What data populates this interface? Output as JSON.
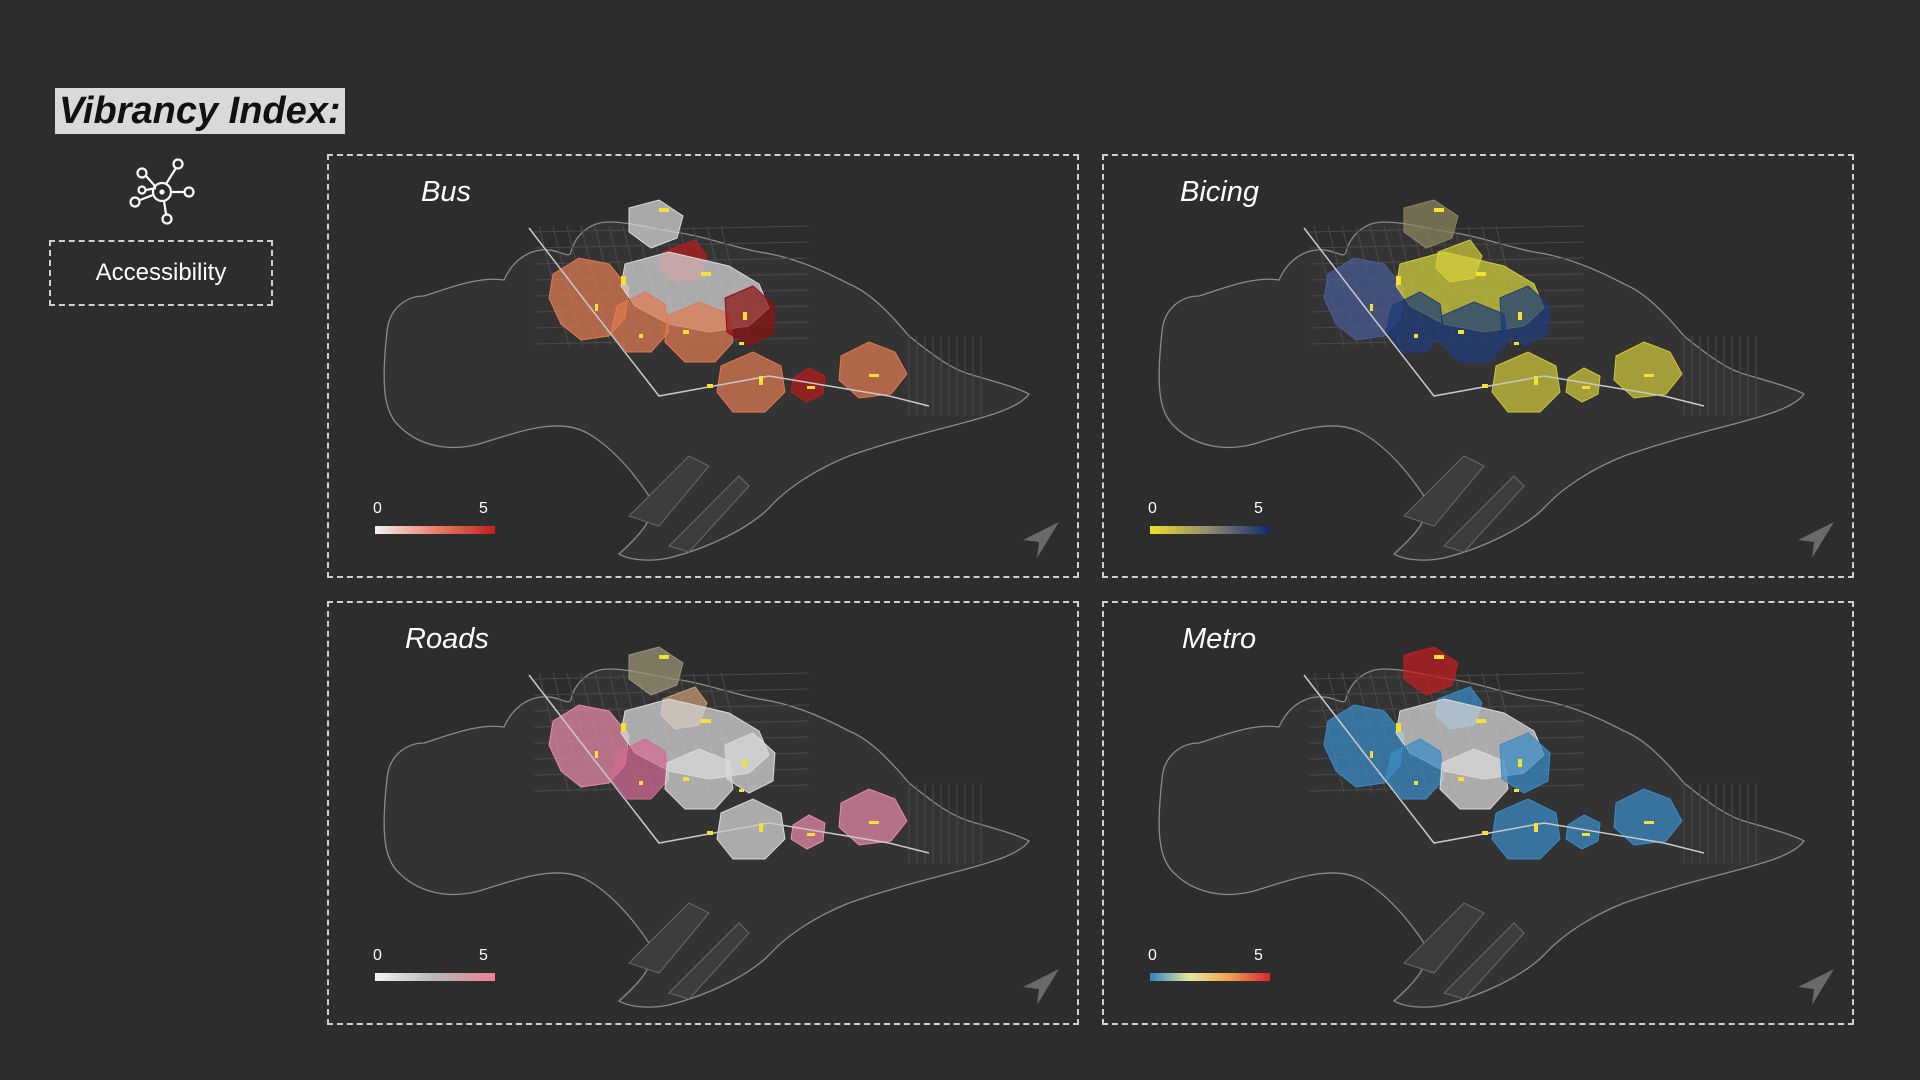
{
  "title": "Vibrancy Index:",
  "category": {
    "icon": "network-icon",
    "label": "Accessibility"
  },
  "panels": [
    {
      "label": "Bus",
      "legend": {
        "min": "0",
        "max": "5",
        "colors": [
          "#f2f2f2",
          "#e8826b",
          "#c21f1f"
        ]
      },
      "zones": [
        {
          "color": "#e07a52",
          "value": 3
        },
        {
          "color": "#b51c1c",
          "value": 5
        },
        {
          "color": "#d9d9d9",
          "value": 0
        },
        {
          "color": "#e07a52",
          "value": 3
        },
        {
          "color": "#e07a52",
          "value": 3
        },
        {
          "color": "#8a1212",
          "value": 5
        },
        {
          "color": "#e07a52",
          "value": 3
        },
        {
          "color": "#b51c1c",
          "value": 5
        },
        {
          "color": "#e07a52",
          "value": 3
        },
        {
          "color": "#d9d9d9",
          "value": 0
        }
      ]
    },
    {
      "label": "Bicing",
      "legend": {
        "min": "0",
        "max": "5",
        "colors": [
          "#f2dc2a",
          "#8c8a70",
          "#0e2a6b"
        ]
      },
      "zones": [
        {
          "color": "#4a5c94",
          "value": 4
        },
        {
          "color": "#cfc83a",
          "value": 1
        },
        {
          "color": "#d4d23c",
          "value": 1
        },
        {
          "color": "#1f3b78",
          "value": 5
        },
        {
          "color": "#1f3b78",
          "value": 5
        },
        {
          "color": "#1f3b78",
          "value": 5
        },
        {
          "color": "#cfc83a",
          "value": 1
        },
        {
          "color": "#cfc83a",
          "value": 1
        },
        {
          "color": "#cfc83a",
          "value": 1
        },
        {
          "color": "#8a8660",
          "value": 2
        }
      ]
    },
    {
      "label": "Roads",
      "legend": {
        "min": "0",
        "max": "5",
        "colors": [
          "#f2f2f2",
          "#b8b8b8",
          "#ef7f8f"
        ]
      },
      "zones": [
        {
          "color": "#e88aa8",
          "value": 4
        },
        {
          "color": "#c89a74",
          "value": 3
        },
        {
          "color": "#d9d9d9",
          "value": 1
        },
        {
          "color": "#d46a92",
          "value": 4
        },
        {
          "color": "#d9d9d9",
          "value": 1
        },
        {
          "color": "#d9d9d9",
          "value": 1
        },
        {
          "color": "#d9d9d9",
          "value": 1
        },
        {
          "color": "#e88aa8",
          "value": 4
        },
        {
          "color": "#e88aa8",
          "value": 4
        },
        {
          "color": "#9c9676",
          "value": 2
        }
      ]
    },
    {
      "label": "Metro",
      "legend": {
        "min": "0",
        "max": "5",
        "colors": [
          "#2f86c4",
          "#e8e89a",
          "#f0a050",
          "#d8262a"
        ]
      },
      "zones": [
        {
          "color": "#3a8cc8",
          "value": 1
        },
        {
          "color": "#3a8cc8",
          "value": 1
        },
        {
          "color": "#d9d9d9",
          "value": 2
        },
        {
          "color": "#3a8cc8",
          "value": 1
        },
        {
          "color": "#d9d9d9",
          "value": 2
        },
        {
          "color": "#3a8cc8",
          "value": 1
        },
        {
          "color": "#3a8cc8",
          "value": 1
        },
        {
          "color": "#3a8cc8",
          "value": 1
        },
        {
          "color": "#3a8cc8",
          "value": 1
        },
        {
          "color": "#c21f1f",
          "value": 5
        }
      ]
    }
  ]
}
